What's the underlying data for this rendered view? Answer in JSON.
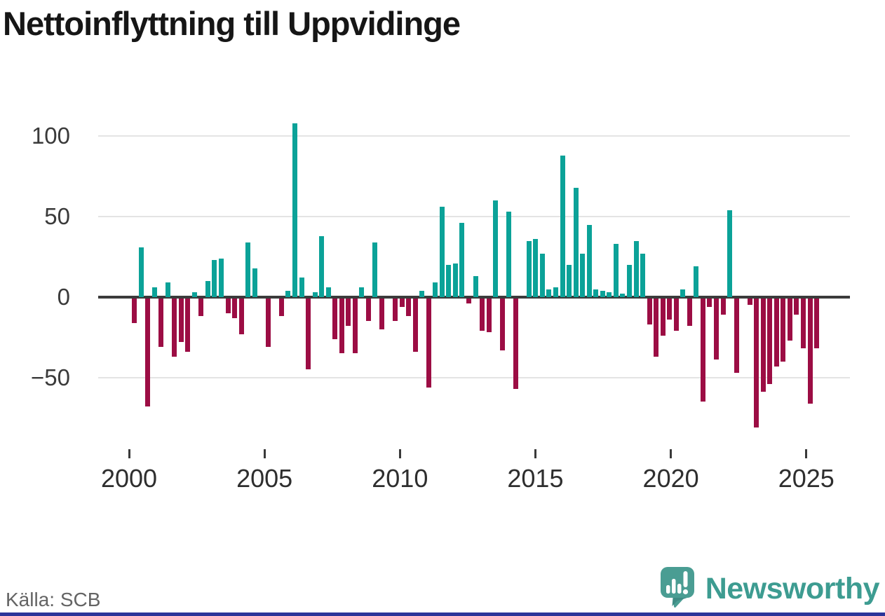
{
  "title": "Nettoinflyttning till Uppvidinge",
  "source": "Källa: SCB",
  "branding": {
    "logo_text": "Newsworthy",
    "logo_icon": "newsworthy-speech-bubble-barchart-icon",
    "brand_teal": "#3D9C91",
    "accent_navy": "#2B3499"
  },
  "chart_data": {
    "type": "bar",
    "title": "Nettoinflyttning till Uppvidinge",
    "xlabel": "",
    "ylabel": "",
    "unit": "net migration per quarter",
    "positive_color": "#0BA298",
    "negative_color": "#9C0D44",
    "grid": true,
    "ylim": [
      -85,
      112
    ],
    "y_ticks": [
      {
        "label": "100",
        "value": 100
      },
      {
        "label": "50",
        "value": 50
      },
      {
        "label": "0",
        "value": 0
      },
      {
        "label": "−50",
        "value": -50
      }
    ],
    "x_ticks": [
      {
        "label": "2000",
        "year": 2000
      },
      {
        "label": "2005",
        "year": 2005
      },
      {
        "label": "2010",
        "year": 2010
      },
      {
        "label": "2015",
        "year": 2015
      },
      {
        "label": "2020",
        "year": 2020
      },
      {
        "label": "2025",
        "year": 2025
      }
    ],
    "series": [
      {
        "q": "2000 Q1",
        "v": -15
      },
      {
        "q": "2000 Q2",
        "v": 31
      },
      {
        "q": "2000 Q3",
        "v": -67
      },
      {
        "q": "2000 Q4",
        "v": 6
      },
      {
        "q": "2001 Q1",
        "v": -30
      },
      {
        "q": "2001 Q2",
        "v": 9
      },
      {
        "q": "2001 Q3",
        "v": -36
      },
      {
        "q": "2001 Q4",
        "v": -27
      },
      {
        "q": "2002 Q1",
        "v": -33
      },
      {
        "q": "2002 Q2",
        "v": 3
      },
      {
        "q": "2002 Q3",
        "v": -11
      },
      {
        "q": "2002 Q4",
        "v": 10
      },
      {
        "q": "2003 Q1",
        "v": 23
      },
      {
        "q": "2003 Q2",
        "v": 24
      },
      {
        "q": "2003 Q3",
        "v": -9
      },
      {
        "q": "2003 Q4",
        "v": -12
      },
      {
        "q": "2004 Q1",
        "v": -22
      },
      {
        "q": "2004 Q2",
        "v": 34
      },
      {
        "q": "2004 Q3",
        "v": 18
      },
      {
        "q": "2004 Q4",
        "v": 0
      },
      {
        "q": "2005 Q1",
        "v": -30
      },
      {
        "q": "2005 Q2",
        "v": 0
      },
      {
        "q": "2005 Q3",
        "v": -11
      },
      {
        "q": "2005 Q4",
        "v": 4
      },
      {
        "q": "2006 Q1",
        "v": 108
      },
      {
        "q": "2006 Q2",
        "v": 12
      },
      {
        "q": "2006 Q3",
        "v": -44
      },
      {
        "q": "2006 Q4",
        "v": 3
      },
      {
        "q": "2007 Q1",
        "v": 38
      },
      {
        "q": "2007 Q2",
        "v": 6
      },
      {
        "q": "2007 Q3",
        "v": -25
      },
      {
        "q": "2007 Q4",
        "v": -34
      },
      {
        "q": "2008 Q1",
        "v": -17
      },
      {
        "q": "2008 Q2",
        "v": -34
      },
      {
        "q": "2008 Q3",
        "v": 6
      },
      {
        "q": "2008 Q4",
        "v": -14
      },
      {
        "q": "2009 Q1",
        "v": 34
      },
      {
        "q": "2009 Q2",
        "v": -19
      },
      {
        "q": "2009 Q3",
        "v": 0
      },
      {
        "q": "2009 Q4",
        "v": -14
      },
      {
        "q": "2010 Q1",
        "v": -5
      },
      {
        "q": "2010 Q2",
        "v": -11
      },
      {
        "q": "2010 Q3",
        "v": -33
      },
      {
        "q": "2010 Q4",
        "v": 4
      },
      {
        "q": "2011 Q1",
        "v": -55
      },
      {
        "q": "2011 Q2",
        "v": 9
      },
      {
        "q": "2011 Q3",
        "v": 56
      },
      {
        "q": "2011 Q4",
        "v": 20
      },
      {
        "q": "2012 Q1",
        "v": 21
      },
      {
        "q": "2012 Q2",
        "v": 46
      },
      {
        "q": "2012 Q3",
        "v": -3
      },
      {
        "q": "2012 Q4",
        "v": 13
      },
      {
        "q": "2013 Q1",
        "v": -20
      },
      {
        "q": "2013 Q2",
        "v": -21
      },
      {
        "q": "2013 Q3",
        "v": 60
      },
      {
        "q": "2013 Q4",
        "v": -32
      },
      {
        "q": "2014 Q1",
        "v": 53
      },
      {
        "q": "2014 Q2",
        "v": -56
      },
      {
        "q": "2014 Q3",
        "v": 0
      },
      {
        "q": "2014 Q4",
        "v": 35
      },
      {
        "q": "2015 Q1",
        "v": 36
      },
      {
        "q": "2015 Q2",
        "v": 27
      },
      {
        "q": "2015 Q3",
        "v": 5
      },
      {
        "q": "2015 Q4",
        "v": 6
      },
      {
        "q": "2016 Q1",
        "v": 88
      },
      {
        "q": "2016 Q2",
        "v": 20
      },
      {
        "q": "2016 Q3",
        "v": 68
      },
      {
        "q": "2016 Q4",
        "v": 27
      },
      {
        "q": "2017 Q1",
        "v": 45
      },
      {
        "q": "2017 Q2",
        "v": 5
      },
      {
        "q": "2017 Q3",
        "v": 4
      },
      {
        "q": "2017 Q4",
        "v": 3
      },
      {
        "q": "2018 Q1",
        "v": 33
      },
      {
        "q": "2018 Q2",
        "v": 2
      },
      {
        "q": "2018 Q3",
        "v": 20
      },
      {
        "q": "2018 Q4",
        "v": 35
      },
      {
        "q": "2019 Q1",
        "v": 27
      },
      {
        "q": "2019 Q2",
        "v": -16
      },
      {
        "q": "2019 Q3",
        "v": -36
      },
      {
        "q": "2019 Q4",
        "v": -23
      },
      {
        "q": "2020 Q1",
        "v": -13
      },
      {
        "q": "2020 Q2",
        "v": -20
      },
      {
        "q": "2020 Q3",
        "v": 5
      },
      {
        "q": "2020 Q4",
        "v": -17
      },
      {
        "q": "2021 Q1",
        "v": 19
      },
      {
        "q": "2021 Q2",
        "v": -64
      },
      {
        "q": "2021 Q3",
        "v": -5
      },
      {
        "q": "2021 Q4",
        "v": -38
      },
      {
        "q": "2022 Q1",
        "v": -10
      },
      {
        "q": "2022 Q2",
        "v": 54
      },
      {
        "q": "2022 Q3",
        "v": -46
      },
      {
        "q": "2022 Q4",
        "v": 0
      },
      {
        "q": "2023 Q1",
        "v": -4
      },
      {
        "q": "2023 Q2",
        "v": -80
      },
      {
        "q": "2023 Q3",
        "v": -58
      },
      {
        "q": "2023 Q4",
        "v": -53
      },
      {
        "q": "2024 Q1",
        "v": -42
      },
      {
        "q": "2024 Q2",
        "v": -39
      },
      {
        "q": "2024 Q3",
        "v": -26
      },
      {
        "q": "2024 Q4",
        "v": -10
      },
      {
        "q": "2025 Q1",
        "v": -31
      },
      {
        "q": "2025 Q2",
        "v": -65
      },
      {
        "q": "2025 Q3",
        "v": -31
      }
    ]
  }
}
